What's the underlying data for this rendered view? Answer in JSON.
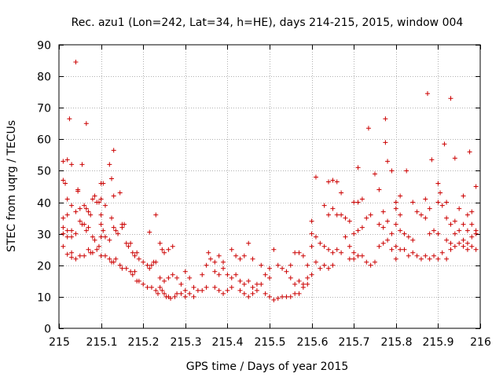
{
  "chart_data": {
    "type": "scatter",
    "title": "Rec. azu1 (Lon=242, Lat=34, h=HE), days 214-215, 2015, window 004",
    "xlabel": "GPS time / Days of year 2015",
    "ylabel": "STEC from uqrg / TECUs",
    "xlim": [
      215,
      216
    ],
    "ylim": [
      0,
      90
    ],
    "x_ticks": [
      "215",
      "215.1",
      "215.2",
      "215.3",
      "215.4",
      "215.5",
      "215.6",
      "215.7",
      "215.8",
      "215.9",
      "216"
    ],
    "y_ticks": [
      "0",
      "10",
      "20",
      "30",
      "40",
      "50",
      "60",
      "70",
      "80",
      "90"
    ],
    "grid": true,
    "legend": "none",
    "marker": "+",
    "colors": {
      "points": "#cc0000",
      "grid": "#b0b0b0",
      "axes": "#000000"
    },
    "points": [
      [
        215.01,
        53
      ],
      [
        215.02,
        53.5
      ],
      [
        215.03,
        52
      ],
      [
        215.01,
        47
      ],
      [
        215.015,
        46
      ],
      [
        215.02,
        41
      ],
      [
        215.03,
        39
      ],
      [
        215.01,
        35
      ],
      [
        215.02,
        36
      ],
      [
        215.04,
        37
      ],
      [
        215.01,
        32
      ],
      [
        215.02,
        31
      ],
      [
        215.03,
        31
      ],
      [
        215.04,
        30
      ],
      [
        215.01,
        30
      ],
      [
        215.02,
        29
      ],
      [
        215.03,
        29
      ],
      [
        215.01,
        26
      ],
      [
        215.03,
        24
      ],
      [
        215.02,
        23.5
      ],
      [
        215.03,
        22.5
      ],
      [
        215.04,
        22
      ],
      [
        215.05,
        23
      ],
      [
        215.06,
        23
      ],
      [
        215.025,
        66.5
      ],
      [
        215.04,
        84.5
      ],
      [
        215.045,
        44
      ],
      [
        215.045,
        43.5
      ],
      [
        215.055,
        52
      ],
      [
        215.065,
        65
      ],
      [
        215.05,
        38
      ],
      [
        215.06,
        39
      ],
      [
        215.065,
        38
      ],
      [
        215.07,
        37
      ],
      [
        215.075,
        36
      ],
      [
        215.05,
        34
      ],
      [
        215.055,
        33
      ],
      [
        215.06,
        33
      ],
      [
        215.065,
        31
      ],
      [
        215.07,
        32
      ],
      [
        215.08,
        29
      ],
      [
        215.085,
        28
      ],
      [
        215.07,
        25
      ],
      [
        215.075,
        24
      ],
      [
        215.08,
        24
      ],
      [
        215.09,
        25
      ],
      [
        215.095,
        26
      ],
      [
        215.08,
        41
      ],
      [
        215.085,
        42
      ],
      [
        215.09,
        40
      ],
      [
        215.095,
        40
      ],
      [
        215.1,
        46
      ],
      [
        215.1,
        41
      ],
      [
        215.105,
        46
      ],
      [
        215.11,
        39
      ],
      [
        215.1,
        36
      ],
      [
        215.1,
        33
      ],
      [
        215.105,
        31
      ],
      [
        215.11,
        29
      ],
      [
        215.12,
        28
      ],
      [
        215.1,
        29
      ],
      [
        215.1,
        23
      ],
      [
        215.11,
        23
      ],
      [
        215.12,
        22
      ],
      [
        215.125,
        21
      ],
      [
        215.13,
        21
      ],
      [
        215.135,
        22
      ],
      [
        215.12,
        52
      ],
      [
        215.125,
        47.5
      ],
      [
        215.13,
        56.5
      ],
      [
        215.13,
        42
      ],
      [
        215.125,
        35
      ],
      [
        215.13,
        32
      ],
      [
        215.135,
        31
      ],
      [
        215.14,
        30
      ],
      [
        215.15,
        32
      ],
      [
        215.145,
        43
      ],
      [
        215.15,
        33
      ],
      [
        215.155,
        33
      ],
      [
        215.16,
        27
      ],
      [
        215.165,
        26
      ],
      [
        215.17,
        27
      ],
      [
        215.175,
        24
      ],
      [
        215.18,
        23
      ],
      [
        215.185,
        24
      ],
      [
        215.19,
        22
      ],
      [
        215.145,
        20
      ],
      [
        215.15,
        19
      ],
      [
        215.16,
        19
      ],
      [
        215.17,
        18
      ],
      [
        215.175,
        17
      ],
      [
        215.18,
        18
      ],
      [
        215.185,
        15
      ],
      [
        215.19,
        15
      ],
      [
        215.2,
        14
      ],
      [
        215.2,
        21
      ],
      [
        215.21,
        20
      ],
      [
        215.215,
        19
      ],
      [
        215.22,
        20
      ],
      [
        215.225,
        21
      ],
      [
        215.23,
        21
      ],
      [
        215.215,
        30.5
      ],
      [
        215.23,
        36
      ],
      [
        215.24,
        27
      ],
      [
        215.245,
        25
      ],
      [
        215.25,
        24
      ],
      [
        215.26,
        25
      ],
      [
        215.27,
        26
      ],
      [
        215.21,
        13
      ],
      [
        215.22,
        13
      ],
      [
        215.23,
        12
      ],
      [
        215.235,
        11
      ],
      [
        215.24,
        13
      ],
      [
        215.245,
        12
      ],
      [
        215.25,
        11
      ],
      [
        215.255,
        10
      ],
      [
        215.26,
        10
      ],
      [
        215.265,
        9.5
      ],
      [
        215.275,
        10
      ],
      [
        215.28,
        11
      ],
      [
        215.24,
        16
      ],
      [
        215.25,
        15
      ],
      [
        215.26,
        16
      ],
      [
        215.27,
        17
      ],
      [
        215.28,
        16
      ],
      [
        215.29,
        14
      ],
      [
        215.3,
        12
      ],
      [
        215.29,
        11
      ],
      [
        215.3,
        10
      ],
      [
        215.31,
        11
      ],
      [
        215.32,
        10
      ],
      [
        215.3,
        18
      ],
      [
        215.31,
        16
      ],
      [
        215.32,
        13
      ],
      [
        215.33,
        12
      ],
      [
        215.34,
        12
      ],
      [
        215.35,
        13
      ],
      [
        215.34,
        17
      ],
      [
        215.35,
        20
      ],
      [
        215.355,
        24
      ],
      [
        215.36,
        22
      ],
      [
        215.37,
        21
      ],
      [
        215.38,
        23
      ],
      [
        215.39,
        21
      ],
      [
        215.37,
        13
      ],
      [
        215.38,
        12
      ],
      [
        215.39,
        11
      ],
      [
        215.4,
        12
      ],
      [
        215.41,
        13
      ],
      [
        215.37,
        18
      ],
      [
        215.38,
        17
      ],
      [
        215.39,
        19
      ],
      [
        215.4,
        17
      ],
      [
        215.41,
        16
      ],
      [
        215.42,
        17
      ],
      [
        215.41,
        25
      ],
      [
        215.42,
        23
      ],
      [
        215.43,
        22
      ],
      [
        215.44,
        23
      ],
      [
        215.45,
        27
      ],
      [
        215.46,
        22
      ],
      [
        215.43,
        12
      ],
      [
        215.44,
        11
      ],
      [
        215.45,
        10
      ],
      [
        215.46,
        11
      ],
      [
        215.47,
        12
      ],
      [
        215.43,
        15
      ],
      [
        215.44,
        14
      ],
      [
        215.45,
        15
      ],
      [
        215.46,
        13
      ],
      [
        215.47,
        14
      ],
      [
        215.48,
        14
      ],
      [
        215.48,
        20
      ],
      [
        215.49,
        17
      ],
      [
        215.5,
        16
      ],
      [
        215.5,
        19
      ],
      [
        215.49,
        11
      ],
      [
        215.5,
        10
      ],
      [
        215.51,
        9
      ],
      [
        215.52,
        9.5
      ],
      [
        215.53,
        10
      ],
      [
        215.51,
        25
      ],
      [
        215.52,
        20
      ],
      [
        215.53,
        19
      ],
      [
        215.54,
        18
      ],
      [
        215.55,
        20
      ],
      [
        215.56,
        24
      ],
      [
        215.57,
        24
      ],
      [
        215.58,
        23
      ],
      [
        215.59,
        20
      ],
      [
        215.55,
        16
      ],
      [
        215.56,
        14
      ],
      [
        215.57,
        15
      ],
      [
        215.58,
        14
      ],
      [
        215.59,
        16
      ],
      [
        215.6,
        17
      ],
      [
        215.54,
        10
      ],
      [
        215.55,
        10
      ],
      [
        215.56,
        11
      ],
      [
        215.57,
        11
      ],
      [
        215.58,
        13
      ],
      [
        215.59,
        14
      ],
      [
        215.6,
        34
      ],
      [
        215.61,
        48
      ],
      [
        215.6,
        30
      ],
      [
        215.61,
        29
      ],
      [
        215.62,
        27
      ],
      [
        215.6,
        26
      ],
      [
        215.61,
        21
      ],
      [
        215.62,
        19
      ],
      [
        215.63,
        20
      ],
      [
        215.64,
        19
      ],
      [
        215.65,
        20
      ],
      [
        215.63,
        39
      ],
      [
        215.64,
        36
      ],
      [
        215.64,
        46.5
      ],
      [
        215.65,
        47
      ],
      [
        215.66,
        46.5
      ],
      [
        215.67,
        43
      ],
      [
        215.65,
        38
      ],
      [
        215.66,
        36
      ],
      [
        215.67,
        36
      ],
      [
        215.68,
        35
      ],
      [
        215.69,
        34
      ],
      [
        215.63,
        26
      ],
      [
        215.64,
        25
      ],
      [
        215.65,
        24
      ],
      [
        215.66,
        25
      ],
      [
        215.67,
        24
      ],
      [
        215.68,
        29
      ],
      [
        215.69,
        26
      ],
      [
        215.7,
        24
      ],
      [
        215.7,
        40
      ],
      [
        215.71,
        40
      ],
      [
        215.72,
        41
      ],
      [
        215.71,
        51
      ],
      [
        215.7,
        30
      ],
      [
        215.71,
        31
      ],
      [
        215.72,
        32
      ],
      [
        215.73,
        35
      ],
      [
        215.74,
        36
      ],
      [
        215.69,
        22
      ],
      [
        215.7,
        22
      ],
      [
        215.71,
        23
      ],
      [
        215.72,
        23
      ],
      [
        215.73,
        21
      ],
      [
        215.74,
        20
      ],
      [
        215.75,
        21
      ],
      [
        215.735,
        63.5
      ],
      [
        215.75,
        49
      ],
      [
        215.76,
        44
      ],
      [
        215.77,
        37
      ],
      [
        215.76,
        33
      ],
      [
        215.77,
        32
      ],
      [
        215.78,
        34
      ],
      [
        215.79,
        30
      ],
      [
        215.76,
        26
      ],
      [
        215.77,
        27
      ],
      [
        215.78,
        28
      ],
      [
        215.79,
        25
      ],
      [
        215.8,
        22
      ],
      [
        215.775,
        66.5
      ],
      [
        215.775,
        59
      ],
      [
        215.78,
        53
      ],
      [
        215.79,
        50
      ],
      [
        215.8,
        40
      ],
      [
        215.81,
        42
      ],
      [
        215.8,
        38
      ],
      [
        215.81,
        36
      ],
      [
        215.8,
        33
      ],
      [
        215.81,
        31
      ],
      [
        215.82,
        30
      ],
      [
        215.83,
        29
      ],
      [
        215.84,
        28
      ],
      [
        215.8,
        26
      ],
      [
        215.81,
        25
      ],
      [
        215.82,
        25
      ],
      [
        215.83,
        23
      ],
      [
        215.84,
        24
      ],
      [
        215.85,
        23
      ],
      [
        215.86,
        22
      ],
      [
        215.825,
        50
      ],
      [
        215.84,
        40
      ],
      [
        215.85,
        37
      ],
      [
        215.86,
        36
      ],
      [
        215.87,
        35
      ],
      [
        215.875,
        74.5
      ],
      [
        215.87,
        41
      ],
      [
        215.88,
        38
      ],
      [
        215.88,
        30
      ],
      [
        215.89,
        31
      ],
      [
        215.9,
        30
      ],
      [
        215.885,
        53.5
      ],
      [
        215.9,
        46
      ],
      [
        215.905,
        43
      ],
      [
        215.9,
        40
      ],
      [
        215.91,
        39
      ],
      [
        215.92,
        40
      ],
      [
        215.915,
        58.5
      ],
      [
        215.92,
        35
      ],
      [
        215.93,
        33
      ],
      [
        215.94,
        34
      ],
      [
        215.93,
        73
      ],
      [
        215.94,
        54
      ],
      [
        215.95,
        38
      ],
      [
        215.96,
        33
      ],
      [
        215.97,
        31
      ],
      [
        215.96,
        42
      ],
      [
        215.97,
        36
      ],
      [
        215.98,
        37
      ],
      [
        215.99,
        45
      ],
      [
        215.975,
        56
      ],
      [
        215.87,
        23
      ],
      [
        215.88,
        22
      ],
      [
        215.89,
        23
      ],
      [
        215.9,
        22
      ],
      [
        215.91,
        24
      ],
      [
        215.92,
        22
      ],
      [
        215.93,
        25
      ],
      [
        215.94,
        26
      ],
      [
        215.95,
        27
      ],
      [
        215.96,
        28
      ],
      [
        215.97,
        27
      ],
      [
        215.98,
        29
      ],
      [
        215.99,
        31
      ],
      [
        215.92,
        28
      ],
      [
        215.93,
        27
      ],
      [
        215.94,
        30
      ],
      [
        215.95,
        31
      ],
      [
        215.96,
        26
      ],
      [
        215.97,
        25
      ],
      [
        215.98,
        26
      ],
      [
        215.99,
        25
      ],
      [
        215.99,
        30
      ],
      [
        215.98,
        33
      ]
    ]
  }
}
